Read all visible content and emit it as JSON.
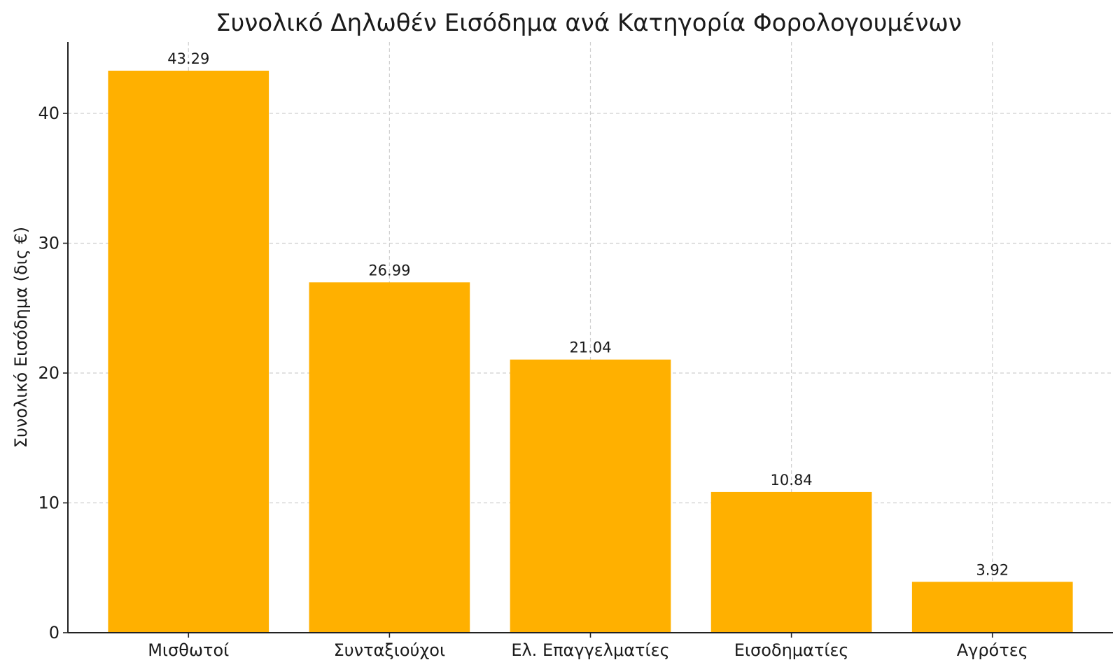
{
  "chart_data": {
    "type": "bar",
    "title": "Συνολικό Δηλωθέν Εισόδημα ανά Κατηγορία Φορολογουμένων",
    "xlabel": "",
    "ylabel": "Συνολικό Εισόδημα (δις €)",
    "categories": [
      "Μισθωτοί",
      "Συνταξιούχοι",
      "Ελ. Επαγγελματίες",
      "Εισοδηματίες",
      "Αγρότες"
    ],
    "values": [
      43.29,
      26.99,
      21.04,
      10.84,
      3.92
    ],
    "data_labels": [
      "43.29",
      "26.99",
      "21.04",
      "10.84",
      "3.92"
    ],
    "ylim": [
      0,
      45.5
    ],
    "yticks": [
      0,
      10,
      20,
      30,
      40
    ],
    "grid": true,
    "bar_color": "#FFB000"
  }
}
